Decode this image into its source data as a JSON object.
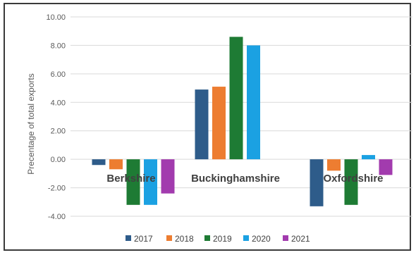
{
  "chart_data": {
    "type": "bar",
    "title": "",
    "xlabel": "",
    "ylabel": "Precentage of total exports",
    "ylim": [
      -4,
      10
    ],
    "yticks": [
      "-4.00",
      "-2.00",
      "0.00",
      "2.00",
      "4.00",
      "6.00",
      "8.00",
      "10.00"
    ],
    "grid": true,
    "legend_position": "bottom",
    "categories": [
      "Berkshire",
      "Buckinghamshire",
      "Oxfordshire"
    ],
    "series": [
      {
        "name": "2017",
        "color": "#2E5C8A",
        "values": [
          -0.4,
          4.9,
          -3.3
        ]
      },
      {
        "name": "2018",
        "color": "#ED7D31",
        "values": [
          -0.7,
          5.1,
          -0.8
        ]
      },
      {
        "name": "2019",
        "color": "#1E7B34",
        "values": [
          -3.2,
          8.6,
          -3.2
        ]
      },
      {
        "name": "2020",
        "color": "#1BA1E2",
        "values": [
          -3.2,
          8.0,
          0.3
        ]
      },
      {
        "name": "2021",
        "color": "#A23BAE",
        "values": [
          -2.4,
          0.0,
          -1.1
        ]
      }
    ]
  }
}
